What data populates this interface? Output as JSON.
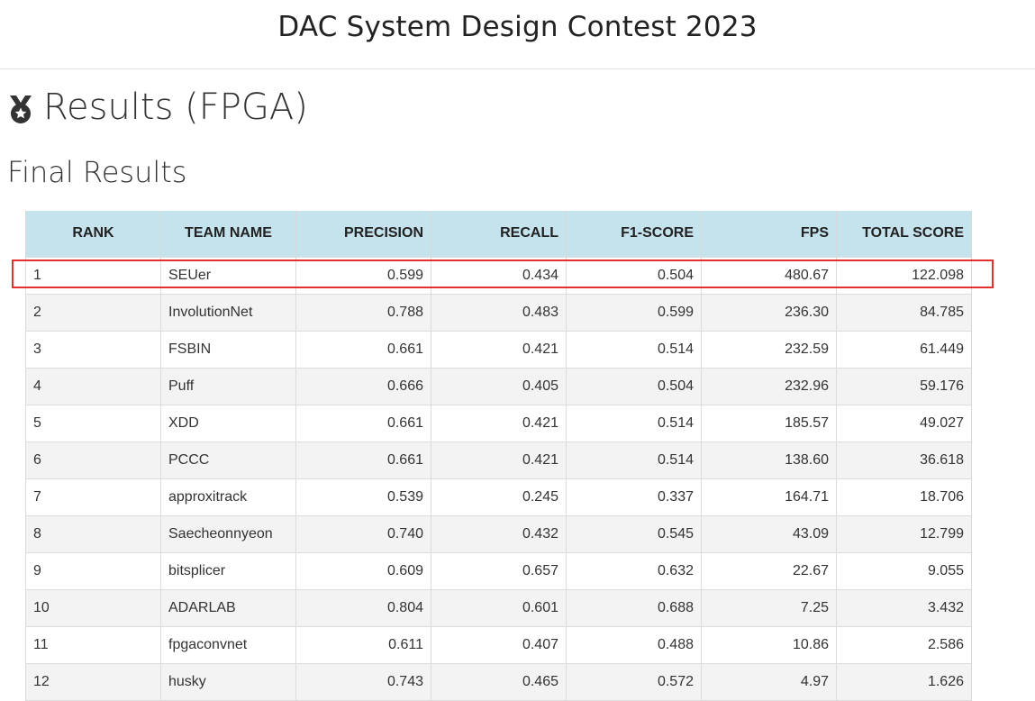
{
  "header": {
    "title": "DAC System Design Contest 2023"
  },
  "page": {
    "heading": "Results (FPGA)",
    "heading_icon": "medal-icon",
    "section_title": "Final Results"
  },
  "table": {
    "columns": [
      "RANK",
      "TEAM NAME",
      "PRECISION",
      "RECALL",
      "F1-SCORE",
      "FPS",
      "TOTAL SCORE"
    ],
    "rows": [
      [
        "1",
        "SEUer",
        "0.599",
        "0.434",
        "0.504",
        "480.67",
        "122.098"
      ],
      [
        "2",
        "InvolutionNet",
        "0.788",
        "0.483",
        "0.599",
        "236.30",
        "84.785"
      ],
      [
        "3",
        "FSBIN",
        "0.661",
        "0.421",
        "0.514",
        "232.59",
        "61.449"
      ],
      [
        "4",
        "Puff",
        "0.666",
        "0.405",
        "0.504",
        "232.96",
        "59.176"
      ],
      [
        "5",
        "XDD",
        "0.661",
        "0.421",
        "0.514",
        "185.57",
        "49.027"
      ],
      [
        "6",
        "PCCC",
        "0.661",
        "0.421",
        "0.514",
        "138.60",
        "36.618"
      ],
      [
        "7",
        "approxitrack",
        "0.539",
        "0.245",
        "0.337",
        "164.71",
        "18.706"
      ],
      [
        "8",
        "Saecheonnyeon",
        "0.740",
        "0.432",
        "0.545",
        "43.09",
        "12.799"
      ],
      [
        "9",
        "bitsplicer",
        "0.609",
        "0.657",
        "0.632",
        "22.67",
        "9.055"
      ],
      [
        "10",
        "ADARLAB",
        "0.804",
        "0.601",
        "0.688",
        "7.25",
        "3.432"
      ],
      [
        "11",
        "fpgaconvnet",
        "0.611",
        "0.407",
        "0.488",
        "10.86",
        "2.586"
      ],
      [
        "12",
        "husky",
        "0.743",
        "0.465",
        "0.572",
        "4.97",
        "1.626"
      ]
    ]
  },
  "colors": {
    "header_bg": "#c4e3ed",
    "highlight": "#e03030",
    "stripe": "#f3f3f3"
  }
}
